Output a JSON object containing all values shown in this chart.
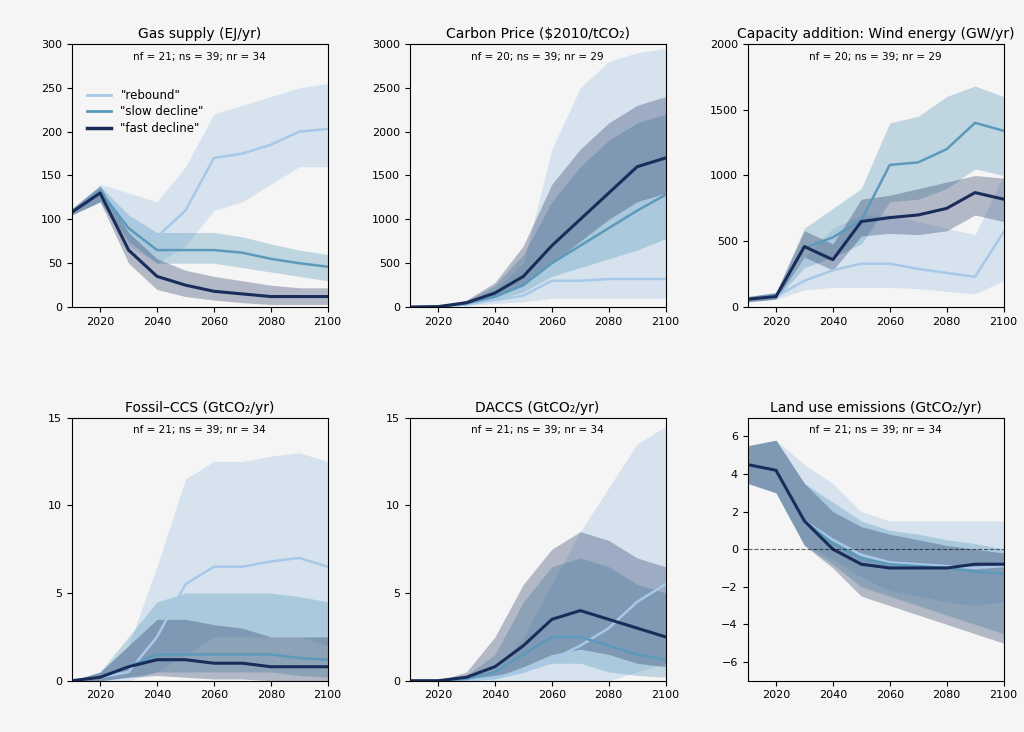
{
  "years": [
    2010,
    2020,
    2030,
    2040,
    2050,
    2060,
    2070,
    2080,
    2090,
    2100
  ],
  "panels": [
    {
      "title": "Gas supply (EJ/yr)",
      "subtitle": "nf = 21; ns = 39; nr = 34",
      "ylim": [
        0,
        300
      ],
      "yticks": [
        0,
        50,
        100,
        150,
        200,
        250,
        300
      ],
      "rebound_median": [
        108,
        130,
        100,
        80,
        110,
        170,
        175,
        185,
        200,
        203
      ],
      "rebound_lo": [
        105,
        120,
        70,
        50,
        70,
        110,
        120,
        140,
        160,
        160
      ],
      "rebound_hi": [
        112,
        140,
        130,
        120,
        160,
        220,
        230,
        240,
        250,
        255
      ],
      "slow_median": [
        108,
        132,
        90,
        65,
        65,
        65,
        62,
        55,
        50,
        46
      ],
      "slow_lo": [
        105,
        120,
        75,
        50,
        50,
        50,
        45,
        40,
        35,
        30
      ],
      "slow_hi": [
        112,
        138,
        105,
        85,
        85,
        85,
        80,
        72,
        65,
        60
      ],
      "fast_median": [
        108,
        130,
        65,
        35,
        25,
        18,
        15,
        12,
        12,
        12
      ],
      "fast_lo": [
        105,
        120,
        50,
        20,
        12,
        8,
        5,
        3,
        3,
        3
      ],
      "fast_hi": [
        112,
        138,
        85,
        55,
        42,
        35,
        30,
        25,
        22,
        22
      ],
      "has_zeroline": false
    },
    {
      "title": "Carbon Price ($2010/tCO₂)",
      "subtitle": "nf = 20; ns = 39; nr = 29",
      "ylim": [
        0,
        3000
      ],
      "yticks": [
        0,
        500,
        1000,
        1500,
        2000,
        2500,
        3000
      ],
      "rebound_median": [
        0,
        5,
        30,
        80,
        130,
        300,
        300,
        320,
        320,
        320
      ],
      "rebound_lo": [
        0,
        2,
        15,
        40,
        60,
        100,
        100,
        100,
        100,
        100
      ],
      "rebound_hi": [
        0,
        10,
        60,
        200,
        500,
        1800,
        2500,
        2800,
        2900,
        2950
      ],
      "slow_median": [
        0,
        5,
        40,
        120,
        250,
        500,
        700,
        900,
        1100,
        1280
      ],
      "slow_lo": [
        0,
        3,
        25,
        80,
        170,
        350,
        450,
        550,
        650,
        780
      ],
      "slow_hi": [
        0,
        8,
        70,
        250,
        600,
        1200,
        1600,
        1900,
        2100,
        2200
      ],
      "fast_median": [
        0,
        5,
        50,
        160,
        350,
        700,
        1000,
        1300,
        1600,
        1700
      ],
      "fast_lo": [
        0,
        3,
        35,
        110,
        250,
        500,
        750,
        1000,
        1200,
        1300
      ],
      "fast_hi": [
        0,
        8,
        80,
        280,
        700,
        1400,
        1800,
        2100,
        2300,
        2400
      ],
      "has_zeroline": false
    },
    {
      "title": "Capacity addition: Wind energy (GW/yr)",
      "subtitle": "nf = 20; ns = 39; nr = 29",
      "ylim": [
        0,
        2000
      ],
      "yticks": [
        0,
        500,
        1000,
        1500,
        2000
      ],
      "rebound_median": [
        60,
        80,
        200,
        280,
        330,
        330,
        290,
        260,
        230,
        570
      ],
      "rebound_lo": [
        40,
        60,
        130,
        150,
        150,
        150,
        140,
        120,
        100,
        200
      ],
      "rebound_hi": [
        80,
        110,
        380,
        600,
        700,
        700,
        650,
        600,
        550,
        1000
      ],
      "slow_median": [
        60,
        80,
        450,
        530,
        660,
        1080,
        1100,
        1200,
        1400,
        1340
      ],
      "slow_lo": [
        40,
        60,
        300,
        380,
        480,
        800,
        820,
        900,
        1050,
        1000
      ],
      "slow_hi": [
        80,
        110,
        600,
        750,
        900,
        1400,
        1450,
        1600,
        1680,
        1600
      ],
      "fast_median": [
        60,
        80,
        460,
        360,
        650,
        680,
        700,
        750,
        870,
        820
      ],
      "fast_lo": [
        40,
        60,
        380,
        280,
        540,
        560,
        550,
        580,
        700,
        650
      ],
      "fast_hi": [
        80,
        110,
        580,
        480,
        820,
        850,
        900,
        950,
        1000,
        980
      ],
      "has_zeroline": false
    },
    {
      "title": "Fossil–CCS (GtCO₂/yr)",
      "subtitle": "nf = 21; ns = 39; nr = 34",
      "ylim": [
        0,
        15
      ],
      "yticks": [
        0,
        5,
        10,
        15
      ],
      "rebound_median": [
        0,
        0.2,
        0.5,
        2.5,
        5.5,
        6.5,
        6.5,
        6.8,
        7.0,
        6.5
      ],
      "rebound_lo": [
        0,
        0.0,
        0.0,
        0.5,
        1.5,
        2.5,
        2.5,
        2.5,
        2.5,
        2.0
      ],
      "rebound_hi": [
        0,
        0.5,
        2.0,
        6.5,
        11.5,
        12.5,
        12.5,
        12.8,
        13.0,
        12.5
      ],
      "slow_median": [
        0,
        0.2,
        0.8,
        1.5,
        1.5,
        1.5,
        1.5,
        1.5,
        1.3,
        1.2
      ],
      "slow_lo": [
        0,
        0.0,
        0.2,
        0.5,
        0.5,
        0.5,
        0.5,
        0.5,
        0.3,
        0.2
      ],
      "slow_hi": [
        0,
        0.5,
        2.5,
        4.5,
        5.0,
        5.0,
        5.0,
        5.0,
        4.8,
        4.5
      ],
      "fast_median": [
        0,
        0.2,
        0.8,
        1.2,
        1.2,
        1.0,
        1.0,
        0.8,
        0.8,
        0.8
      ],
      "fast_lo": [
        0,
        0.0,
        0.2,
        0.3,
        0.2,
        0.1,
        0.1,
        0.0,
        0.0,
        0.0
      ],
      "fast_hi": [
        0,
        0.5,
        2.0,
        3.5,
        3.5,
        3.2,
        3.0,
        2.5,
        2.5,
        2.5
      ],
      "has_zeroline": false
    },
    {
      "title": "DACCS (GtCO₂/yr)",
      "subtitle": "nf = 21; ns = 39; nr = 34",
      "ylim": [
        0,
        15
      ],
      "yticks": [
        0,
        5,
        10,
        15
      ],
      "rebound_median": [
        0,
        0.0,
        0.0,
        0.2,
        0.5,
        1.2,
        2.0,
        3.0,
        4.5,
        5.5
      ],
      "rebound_lo": [
        0,
        0.0,
        0.0,
        0.0,
        0.0,
        0.0,
        0.0,
        0.0,
        0.5,
        1.0
      ],
      "rebound_hi": [
        0,
        0.0,
        0.0,
        0.5,
        2.5,
        5.5,
        8.5,
        11.0,
        13.5,
        14.5
      ],
      "slow_median": [
        0,
        0.0,
        0.1,
        0.5,
        1.5,
        2.5,
        2.5,
        2.0,
        1.5,
        1.2
      ],
      "slow_lo": [
        0,
        0.0,
        0.0,
        0.1,
        0.5,
        1.0,
        1.0,
        0.5,
        0.3,
        0.2
      ],
      "slow_hi": [
        0,
        0.0,
        0.3,
        1.5,
        4.5,
        6.5,
        7.0,
        6.5,
        5.5,
        5.0
      ],
      "fast_median": [
        0,
        0.0,
        0.2,
        0.8,
        2.0,
        3.5,
        4.0,
        3.5,
        3.0,
        2.5
      ],
      "fast_lo": [
        0,
        0.0,
        0.0,
        0.2,
        0.8,
        1.5,
        1.8,
        1.5,
        1.0,
        0.8
      ],
      "fast_hi": [
        0,
        0.0,
        0.5,
        2.5,
        5.5,
        7.5,
        8.5,
        8.0,
        7.0,
        6.5
      ],
      "has_zeroline": false
    },
    {
      "title": "Land use emissions (GtCO₂/yr)",
      "subtitle": "nf = 21; ns = 39; nr = 34",
      "ylim": [
        -7,
        7
      ],
      "yticks": [
        -6,
        -4,
        -2,
        0,
        2,
        4,
        6
      ],
      "rebound_median": [
        4.5,
        4.2,
        1.5,
        0.5,
        -0.3,
        -0.7,
        -0.8,
        -0.9,
        -1.0,
        -0.9
      ],
      "rebound_lo": [
        3.5,
        3.0,
        0.2,
        -0.5,
        -1.5,
        -2.2,
        -2.5,
        -2.8,
        -3.0,
        -2.8
      ],
      "rebound_hi": [
        5.5,
        5.8,
        4.5,
        3.5,
        2.0,
        1.5,
        1.5,
        1.5,
        1.5,
        1.5
      ],
      "slow_median": [
        4.5,
        4.2,
        1.5,
        0.3,
        -0.5,
        -0.8,
        -0.9,
        -1.0,
        -1.2,
        -1.3
      ],
      "slow_lo": [
        3.5,
        3.0,
        0.2,
        -0.8,
        -2.0,
        -2.5,
        -3.0,
        -3.5,
        -4.0,
        -4.5
      ],
      "slow_hi": [
        5.5,
        5.8,
        3.5,
        2.5,
        1.5,
        1.0,
        0.8,
        0.5,
        0.3,
        0.0
      ],
      "fast_median": [
        4.5,
        4.2,
        1.5,
        0.0,
        -0.8,
        -1.0,
        -1.0,
        -1.0,
        -0.8,
        -0.8
      ],
      "fast_lo": [
        3.5,
        3.0,
        0.2,
        -1.0,
        -2.5,
        -3.0,
        -3.5,
        -4.0,
        -4.5,
        -5.0
      ],
      "fast_hi": [
        5.5,
        5.8,
        3.5,
        2.0,
        1.2,
        0.8,
        0.5,
        0.2,
        0.0,
        -0.2
      ],
      "has_zeroline": true
    }
  ],
  "colors": {
    "rebound": "#a8c8e8",
    "slow": "#5b9aba",
    "fast": "#1a2d5a"
  },
  "legend_labels": [
    "\"rebound\"",
    "\"slow decline\"",
    "\"fast decline\""
  ],
  "background_color": "#f5f5f5"
}
